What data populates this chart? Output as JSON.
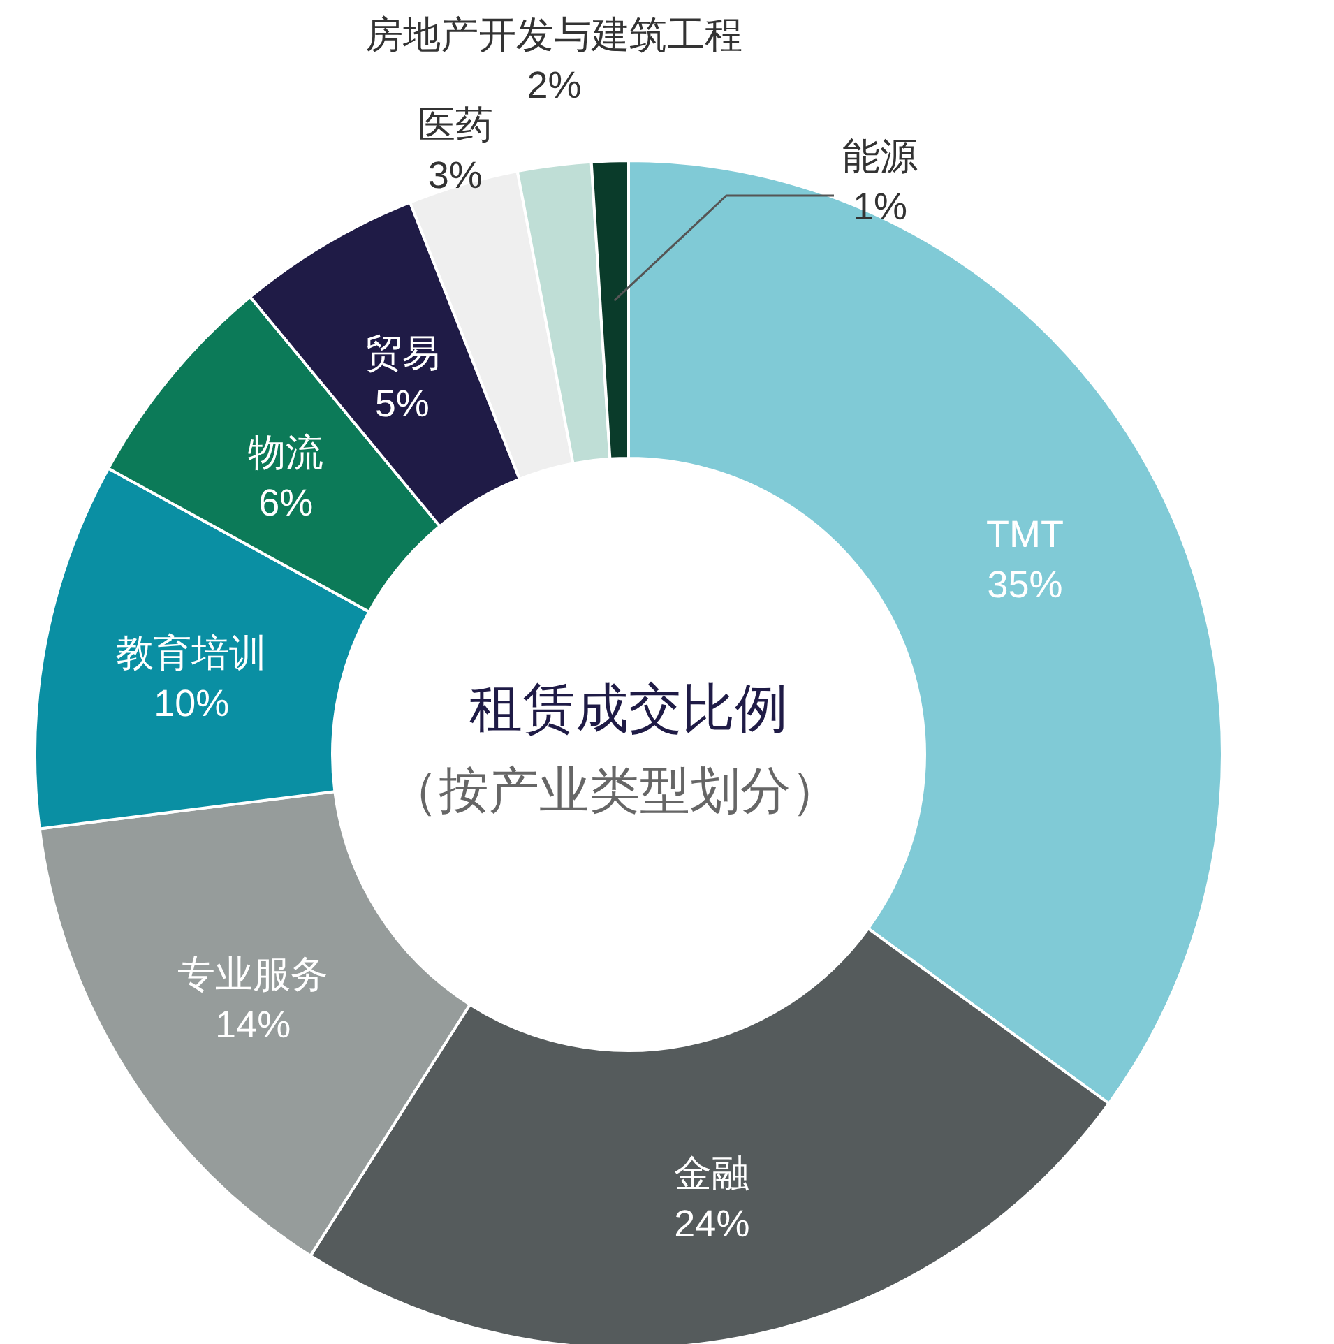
{
  "chart_data": {
    "type": "donut",
    "title": "租赁成交比例",
    "subtitle": "（按产业类型划分）",
    "categories": [
      "TMT",
      "金融",
      "专业服务",
      "教育培训",
      "物流",
      "贸易",
      "医药",
      "房地产开发与建筑工程",
      "能源"
    ],
    "values": [
      35,
      24,
      14,
      10,
      6,
      5,
      3,
      2,
      1
    ],
    "value_labels": [
      "35%",
      "24%",
      "14%",
      "10%",
      "6%",
      "5%",
      "3%",
      "2%",
      "1%"
    ],
    "colors": [
      "#80cad6",
      "#555b5c",
      "#969c9b",
      "#0a8fa3",
      "#0c7a58",
      "#1f1b46",
      "#efefef",
      "#bfded6",
      "#0a3b2a"
    ],
    "legend": false
  }
}
